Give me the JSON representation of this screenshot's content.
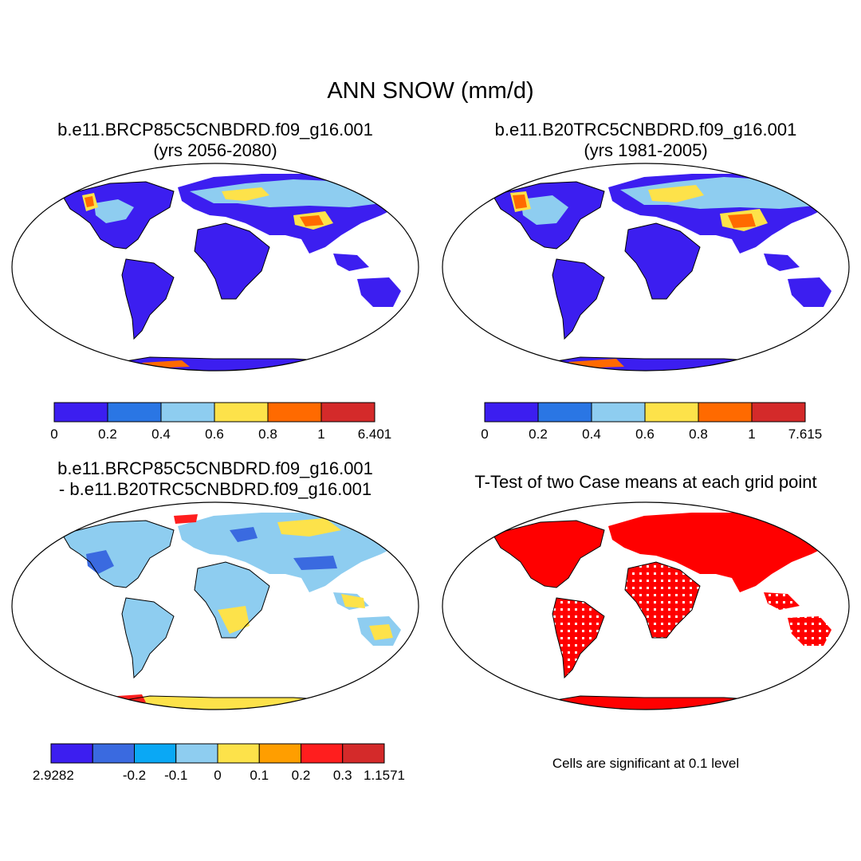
{
  "title": "ANN SNOW (mm/d)",
  "panels": [
    {
      "id": "p1",
      "title_line1": "b.e11.BRCP85C5CNBDRD.f09_g16.001",
      "title_line2": "(yrs 2056-2080)",
      "colorbar": {
        "colors": [
          "#3c1ef0",
          "#2a76e4",
          "#8ecdf0",
          "#fde24a",
          "#ff6a00",
          "#d42a2a"
        ],
        "labels": [
          "0",
          "0.2",
          "0.4",
          "0.6",
          "0.8",
          "1",
          "6.401"
        ]
      }
    },
    {
      "id": "p2",
      "title_line1": "b.e11.B20TRC5CNBDRD.f09_g16.001",
      "title_line2": "(yrs 1981-2005)",
      "colorbar": {
        "colors": [
          "#3c1ef0",
          "#2a76e4",
          "#8ecdf0",
          "#fde24a",
          "#ff6a00",
          "#d42a2a"
        ],
        "labels": [
          "0",
          "0.2",
          "0.4",
          "0.6",
          "0.8",
          "1",
          "7.615"
        ]
      }
    },
    {
      "id": "p3",
      "title_line1": "b.e11.BRCP85C5CNBDRD.f09_g16.001",
      "title_line2": "- b.e11.B20TRC5CNBDRD.f09_g16.001",
      "colorbar": {
        "colors": [
          "#3c1ef0",
          "#3a6ae0",
          "#0aa8f5",
          "#8ecdf0",
          "#fde24a",
          "#ff9e00",
          "#ff1e1e",
          "#d42a2a"
        ],
        "labels": [
          "-2.9282",
          "",
          "-0.2",
          "-0.1",
          "0",
          "0.1",
          "0.2",
          "0.3",
          "1.1571"
        ]
      }
    },
    {
      "id": "p4",
      "title_line1": "T-Test of two Case means at each grid point",
      "title_line2": "",
      "note": "Cells are significant at 0.1 level"
    }
  ]
}
